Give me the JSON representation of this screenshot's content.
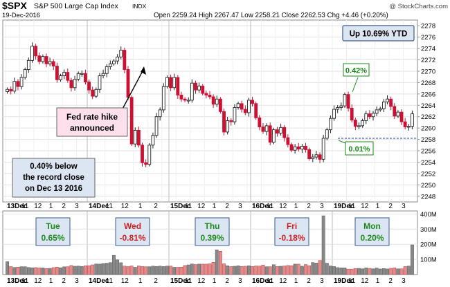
{
  "header": {
    "symbol": "$SPX",
    "name": "S&P 500 Large Cap Index",
    "exchange": "INDX",
    "date": "19-Dec-2016",
    "watermark": "@ StockCharts.com",
    "quote": "Open 2259.24  High 2267.47  Low 2258.21  Close 2262.53  Chg +4.46 (+0.20%)",
    "quote_arrow": "▲"
  },
  "annotations": {
    "ytd": "Up 10.69% YTD",
    "fed_line1": "Fed rate hike",
    "fed_line2": "announced",
    "record_line1": "0.40% below",
    "record_line2": "the record close",
    "record_line3": "on Dec 13 2016",
    "high_label": "0.42%",
    "low_label": "0.01%"
  },
  "day_boxes": [
    {
      "day": "Tue",
      "pct": "0.65%",
      "color": "#1a8a1a"
    },
    {
      "day": "Wed",
      "pct": "-0.81%",
      "color": "#cc1f1f"
    },
    {
      "day": "Thu",
      "pct": "0.39%",
      "color": "#1a8a1a"
    },
    {
      "day": "Fri",
      "pct": "-0.18%",
      "color": "#cc1f1f"
    },
    {
      "day": "Mon",
      "pct": "0.20%",
      "color": "#1a8a1a"
    }
  ],
  "colors": {
    "up": "#222222",
    "down": "#cc1133",
    "vol_up": "#888888",
    "vol_down": "#e58a8a",
    "box_bg": "#dce6f2",
    "box_border": "#3a5a8a"
  },
  "chart_data": {
    "type": "candlestick",
    "price_ylim": [
      2247,
      2279
    ],
    "price_ticks": [
      2248,
      2250,
      2252,
      2254,
      2256,
      2258,
      2260,
      2262,
      2264,
      2266,
      2268,
      2270,
      2272,
      2274,
      2276,
      2278
    ],
    "volume_ticks": [
      "100M",
      "200M",
      "300M",
      "400M"
    ],
    "volume_tick_values": [
      100,
      200,
      300,
      400
    ],
    "volume_ylim": [
      0,
      420
    ],
    "x_ticks": [
      "13Dec",
      "11",
      "12",
      "1",
      "2",
      "3",
      "14Dec",
      "11",
      "12",
      "1",
      "2",
      "15Dec",
      "11",
      "12",
      "1",
      "2",
      "3",
      "16Dec",
      "11",
      "12",
      "1",
      "2",
      "3",
      "19Dec",
      "11",
      "12",
      "1",
      "2",
      "3"
    ],
    "closes": [
      2266.8,
      2266.5,
      2268.2,
      2267.3,
      2268.9,
      2270.3,
      2271.9,
      2274.4,
      2272.7,
      2271.7,
      2272.6,
      2271.3,
      2271.7,
      2270.9,
      2268.5,
      2269.2,
      2269.8,
      2268.4,
      2267.1,
      2268.6,
      2269.6,
      2269.6,
      2268.1,
      2266.7,
      2265.6,
      2266.8,
      2269.2,
      2269.6,
      2270.8,
      2271.3,
      2271.8,
      2272.5,
      2273.7,
      2270.3,
      2265.4,
      2257.2,
      2259.6,
      2257.0,
      2253.9,
      2253.6,
      2257.0,
      2258.7,
      2262.0,
      2263.2,
      2267.3,
      2268.9,
      2267.1,
      2268.9,
      2265.8,
      2265.1,
      2264.9,
      2264.9,
      2267.9,
      2266.7,
      2267.4,
      2266.1,
      2265.8,
      2265.5,
      2264.2,
      2265.1,
      2262.9,
      2259.3,
      2261.3,
      2261.1,
      2263.6,
      2264.3,
      2263.3,
      2262.7,
      2264.9,
      2264.3,
      2261.8,
      2260.2,
      2259.4,
      2260.4,
      2257.5,
      2259.7,
      2259.1,
      2260.1,
      2258.3,
      2257.1,
      2256.1,
      2256.7,
      2256.3,
      2256.8,
      2256.2,
      2254.6,
      2254.9,
      2255.3,
      2254.5,
      2258.2,
      2259.7,
      2261.7,
      2263.3,
      2263.6,
      2263.9,
      2265.9,
      2263.5,
      2261.4,
      2260.3,
      2260.4,
      2261.3,
      2262.5,
      2262.0,
      2262.6,
      2263.2,
      2263.4,
      2264.6,
      2265.1,
      2263.8,
      2262.1,
      2262.8,
      2261.1,
      2260.2,
      2260.3,
      2262.5
    ],
    "volumes": [
      85,
      53,
      47,
      49,
      52,
      52,
      47,
      45,
      46,
      44,
      44,
      40,
      41,
      46,
      49,
      45,
      51,
      52,
      60,
      55,
      56,
      54,
      58,
      59,
      64,
      70,
      69,
      73,
      75,
      79,
      127,
      97,
      78,
      56,
      53,
      57,
      48,
      57,
      53,
      52,
      52,
      56,
      54,
      56,
      53,
      56,
      56,
      48,
      48,
      49,
      60,
      64,
      70,
      66,
      69,
      69,
      69,
      71,
      81,
      163,
      154,
      71,
      58,
      53,
      55,
      58,
      54,
      55,
      58,
      53,
      57,
      56,
      63,
      52,
      52,
      65,
      54,
      55,
      57,
      60,
      59,
      69,
      69,
      55,
      66,
      59,
      79,
      76,
      93,
      388,
      75,
      57,
      53,
      46,
      44,
      44,
      36,
      36,
      40,
      41,
      38,
      44,
      41,
      38,
      43,
      37,
      40,
      37,
      41,
      44,
      38,
      38,
      53,
      56,
      196
    ],
    "day_boundaries_index": [
      0,
      23,
      46,
      69,
      92
    ],
    "levels": {
      "ytd_pct": "10.69%",
      "fed_hike_marker_close": 2273.7,
      "dashed_level": 2258.2
    }
  }
}
